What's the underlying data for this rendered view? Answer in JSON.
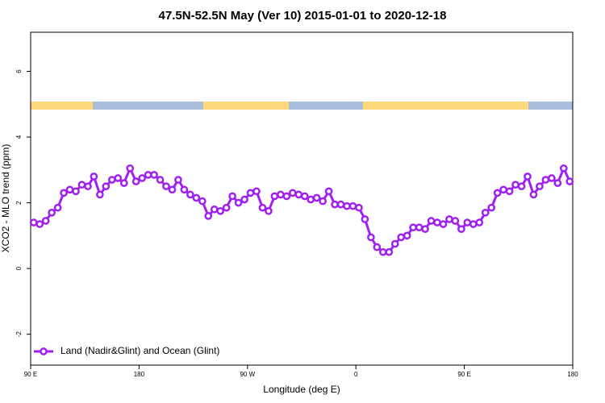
{
  "chart_data": {
    "type": "line",
    "title": "47.5N-52.5N May (Ver 10)   2015-01-01 to 2020-12-18",
    "x_label": "Longitude (deg E)",
    "y_label": "XCO2 - MLO trend (ppm)",
    "x": [
      92.5,
      97.5,
      102.5,
      107.5,
      112.5,
      117.5,
      122.5,
      127.5,
      132.5,
      137.5,
      142.5,
      147.5,
      152.5,
      157.5,
      162.5,
      167.5,
      172.5,
      177.5,
      182.5,
      187.5,
      192.5,
      197.5,
      202.5,
      207.5,
      212.5,
      217.5,
      222.5,
      227.5,
      232.5,
      237.5,
      242.5,
      247.5,
      252.5,
      257.5,
      262.5,
      267.5,
      272.5,
      277.5,
      282.5,
      287.5,
      292.5,
      297.5,
      302.5,
      307.5,
      312.5,
      317.5,
      322.5,
      327.5,
      332.5,
      337.5,
      342.5,
      347.5,
      352.5,
      357.5,
      362.5,
      367.5,
      372.5,
      377.5,
      382.5,
      387.5,
      392.5,
      397.5,
      402.5,
      407.5,
      412.5,
      417.5,
      422.5,
      427.5,
      432.5,
      437.5,
      442.5,
      447.5,
      452.5,
      457.5,
      462.5,
      467.5,
      472.5,
      477.5,
      482.5,
      487.5,
      492.5,
      497.5,
      502.5,
      507.5,
      512.5,
      517.5,
      522.5,
      527.5,
      532.5,
      537.5
    ],
    "series": [
      {
        "name": "Land (Nadir&Glint) and Ocean (Glint)",
        "color": "#a020f0",
        "values": [
          1.4,
          1.35,
          1.45,
          1.7,
          1.85,
          2.3,
          2.4,
          2.35,
          2.55,
          2.5,
          2.8,
          2.25,
          2.5,
          2.7,
          2.75,
          2.6,
          3.05,
          2.65,
          2.75,
          2.85,
          2.85,
          2.7,
          2.5,
          2.4,
          2.7,
          2.4,
          2.25,
          2.15,
          2.05,
          1.6,
          1.8,
          1.75,
          1.85,
          2.2,
          2.0,
          2.1,
          2.3,
          2.35,
          1.85,
          1.75,
          2.2,
          2.25,
          2.2,
          2.3,
          2.25,
          2.2,
          2.1,
          2.15,
          2.05,
          2.35,
          1.95,
          1.95,
          1.9,
          1.9,
          1.85,
          1.5,
          0.95,
          0.65,
          0.5,
          0.5,
          0.75,
          0.95,
          1.0,
          1.25,
          1.25,
          1.2,
          1.45,
          1.4,
          1.35,
          1.5,
          1.45,
          1.2,
          1.4,
          1.35,
          1.4,
          1.7,
          1.85,
          2.3,
          2.4,
          2.35,
          2.55,
          2.5,
          2.8,
          2.25,
          2.5,
          2.7,
          2.75,
          2.6,
          3.05,
          2.65
        ]
      }
    ],
    "xlim": [
      90,
      540
    ],
    "xticks": [
      {
        "value": 90,
        "label": "90 E"
      },
      180,
      {
        "value": 270,
        "label": "90 W"
      },
      {
        "value": 360,
        "label": "0"
      },
      {
        "value": 450,
        "label": "90 E"
      },
      {
        "value": 540,
        "label": "180"
      }
    ],
    "ylim": [
      -2.94,
      7.19
    ],
    "yticks": [
      -2,
      0,
      2,
      4,
      6
    ],
    "legend": "bottom-left"
  }
}
